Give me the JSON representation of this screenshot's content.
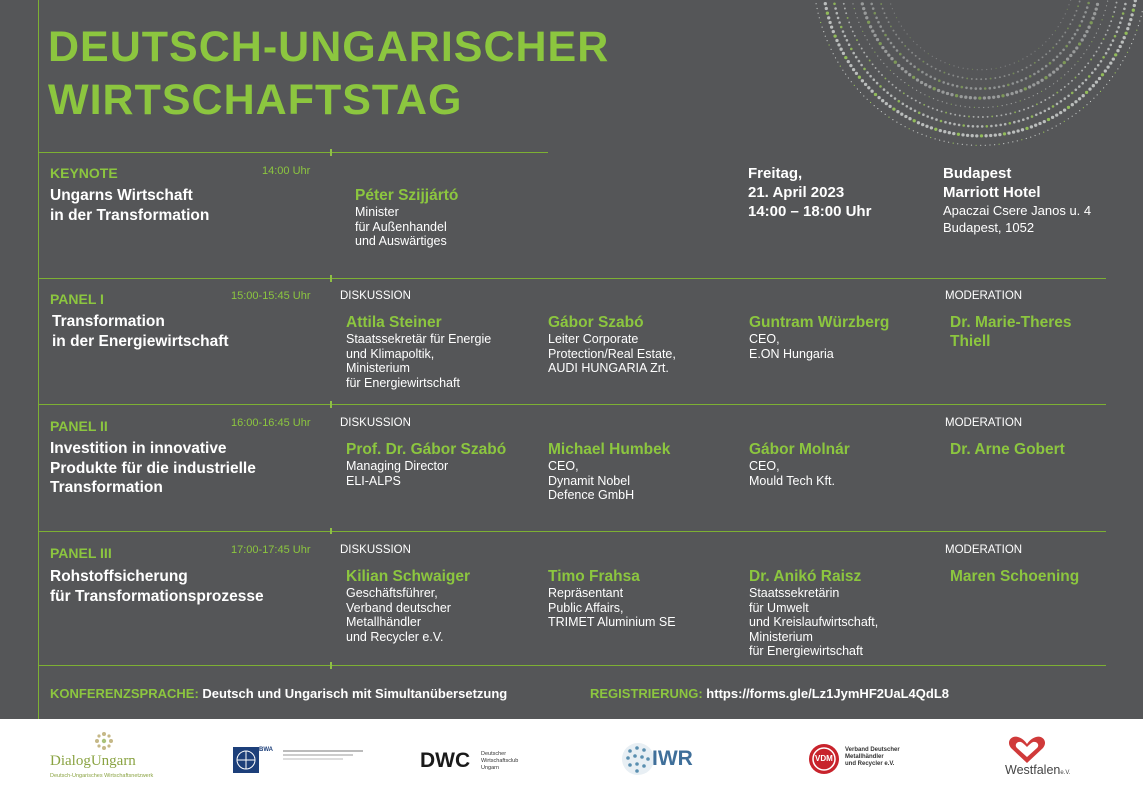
{
  "title": {
    "line1": "DEUTSCH-UNGARISCHER",
    "line2": "WIRTSCHAFTSTAG"
  },
  "keynote": {
    "label": "KEYNOTE",
    "time": "14:00 Uhr",
    "topic": [
      "Ungarns Wirtschaft",
      "in der Transformation"
    ],
    "speaker": {
      "name": "Péter Szijjártó",
      "desc": [
        "Minister",
        "für Außenhandel",
        "und Auswärtiges"
      ]
    }
  },
  "date": [
    "Freitag,",
    "21. April 2023",
    "14:00 – 18:00 Uhr"
  ],
  "venue": {
    "lines": [
      "Budapest",
      "Marriott Hotel"
    ],
    "address": [
      "Apaczai Csere Janos u. 4",
      "Budapest, 1052"
    ]
  },
  "panels": [
    {
      "label": "PANEL I",
      "time": "15:00-15:45 Uhr",
      "topic": [
        "Transformation",
        "in der Energiewirtschaft"
      ],
      "discussion_label": "DISKUSSION",
      "moderation_label": "MODERATION",
      "speakers": [
        {
          "name": "Attila Steiner",
          "desc": [
            "Staatssekretär für Energie",
            "und Klimapoltik,",
            "Ministerium",
            "für Energiewirtschaft"
          ]
        },
        {
          "name": "Gábor Szabó",
          "desc": [
            "Leiter Corporate",
            "Protection/Real Estate,",
            "AUDI HUNGARIA Zrt."
          ]
        },
        {
          "name": "Guntram Würzberg",
          "desc": [
            "CEO,",
            "E.ON Hungaria"
          ]
        }
      ],
      "moderator": [
        "Dr. Marie-Theres",
        "Thiell"
      ]
    },
    {
      "label": "PANEL II",
      "time": "16:00-16:45 Uhr",
      "topic": [
        "Investition in innovative",
        "Produkte für die industrielle",
        "Transformation"
      ],
      "discussion_label": "DISKUSSION",
      "moderation_label": "MODERATION",
      "speakers": [
        {
          "name": "Prof. Dr. Gábor Szabó",
          "desc": [
            "Managing Director",
            "ELI-ALPS"
          ]
        },
        {
          "name": "Michael Humbek",
          "desc": [
            "CEO,",
            "Dynamit Nobel",
            "Defence GmbH"
          ]
        },
        {
          "name": "Gábor Molnár",
          "desc": [
            "CEO,",
            "Mould Tech Kft."
          ]
        }
      ],
      "moderator": [
        "Dr. Arne Gobert"
      ]
    },
    {
      "label": "PANEL III",
      "time": "17:00-17:45 Uhr",
      "topic": [
        "Rohstoffsicherung",
        "für Transformationsprozesse"
      ],
      "discussion_label": "DISKUSSION",
      "moderation_label": "MODERATION",
      "speakers": [
        {
          "name": "Kilian Schwaiger",
          "desc": [
            "Geschäftsführer,",
            "Verband deutscher",
            "Metallhändler",
            "und Recycler e.V."
          ]
        },
        {
          "name": "Timo Frahsa",
          "desc": [
            "Repräsentant",
            "Public Affairs,",
            "TRIMET Aluminium SE"
          ]
        },
        {
          "name": "Dr. Anikó Raisz",
          "desc": [
            "Staatssekretärin",
            "für Umwelt",
            "und Kreislaufwirtschaft,",
            "Ministerium",
            "für Energiewirtschaft"
          ]
        }
      ],
      "moderator": [
        "Maren Schoening"
      ]
    }
  ],
  "footer": {
    "language_label": "KONFERENZSPRACHE:",
    "language_value": "Deutsch und Ungarisch mit Simultanübersetzung",
    "registration_label": "REGISTRIERUNG:",
    "registration_value": "https://forms.gle/Lz1JymHF2UaL4QdL8"
  },
  "logos": {
    "dialog": {
      "name": "DialogUngarn",
      "sub": "Deutsch-Ungarisches Wirtschaftsnetzwerk"
    },
    "bwa": {
      "name": "BWA"
    },
    "dwc": {
      "name": "DWC",
      "sub": [
        "Deutscher",
        "Wirtschaftsclub",
        "Ungarn"
      ]
    },
    "iwr": {
      "name": "IWR"
    },
    "vdm": {
      "name": "VDM",
      "sub": [
        "Verband Deutscher",
        "Metallhändler",
        "und Recycler e.V."
      ]
    },
    "westfalen": {
      "name": "Westfalen",
      "suffix": "e.V."
    }
  },
  "colors": {
    "background": "#555658",
    "accent": "#8cc63f",
    "text": "#ffffff"
  }
}
